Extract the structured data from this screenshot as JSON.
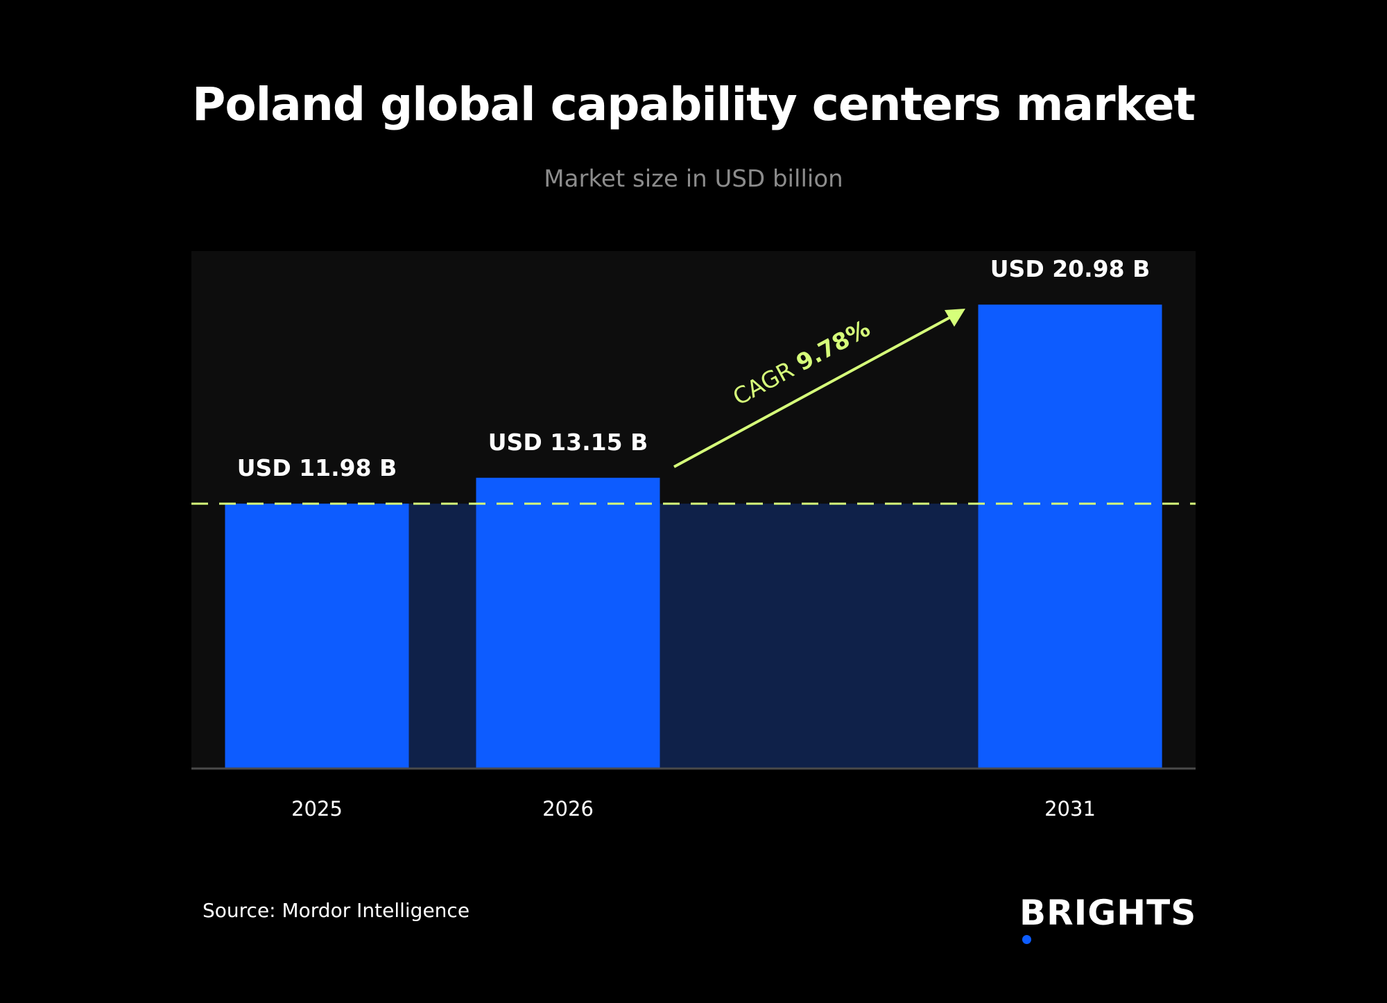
{
  "title": "Poland global capability centers market",
  "subtitle": "Market size in USD billion",
  "source": "Source: Mordor Intelligence",
  "logo": {
    "text": "BRIGHTS",
    "dot_color": "#0d5cff"
  },
  "colors": {
    "background": "#000000",
    "plot_background": "#0d0d0d",
    "bar": "#0d5cff",
    "baseline_fill": "#0f2149",
    "reference_line": "#d6ff7a",
    "cagr_accent": "#d6ff7a"
  },
  "chart_data": {
    "type": "bar",
    "title": "Poland global capability centers market",
    "subtitle": "Market size in USD billion",
    "categories": [
      "2025",
      "2026",
      "2031"
    ],
    "values": [
      11.98,
      13.15,
      20.98
    ],
    "value_labels": [
      "USD 11.98 B",
      "USD 13.15 B",
      "USD 20.98 B"
    ],
    "reference_line": {
      "value": 11.98,
      "style": "dashed"
    },
    "annotation": {
      "prefix": "CAGR ",
      "value": "9.78%"
    },
    "ylim": [
      0,
      23.4
    ],
    "grid": false,
    "legend": "none"
  }
}
